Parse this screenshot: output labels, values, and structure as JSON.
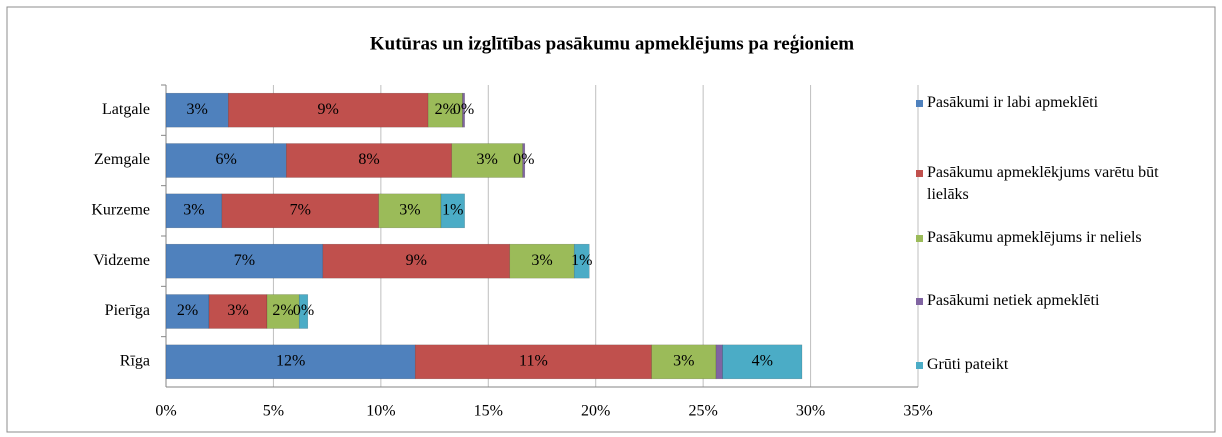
{
  "chart_data": {
    "type": "stacked_bar_horizontal",
    "title": "Kutūras un izglītības pasākumu apmeklējums pa reģioniem",
    "categories": [
      "Latgale",
      "Zemgale",
      "Kurzeme",
      "Vidzeme",
      "Pierīga",
      "Rīga"
    ],
    "series": [
      {
        "name": "Pasākumi ir labi apmeklēti",
        "color": "#4f81bd",
        "values": [
          2.9,
          5.6,
          2.6,
          7.3,
          2.0,
          11.6
        ],
        "value_labels": [
          "3%",
          "6%",
          "3%",
          "7%",
          "2%",
          "12%"
        ]
      },
      {
        "name": "Pasākumu apmeklēkjums varētu būt lielāks",
        "color": "#c0504d",
        "values": [
          9.3,
          7.7,
          7.3,
          8.7,
          2.7,
          11.0
        ],
        "value_labels": [
          "9%",
          "8%",
          "7%",
          "9%",
          "3%",
          "11%"
        ]
      },
      {
        "name": "Pasākumu apmeklējums ir neliels",
        "color": "#9bbb59",
        "values": [
          1.6,
          3.3,
          2.9,
          3.0,
          1.5,
          3.0
        ],
        "value_labels": [
          "2%",
          "3%",
          "3%",
          "3%",
          "2%",
          "3%"
        ]
      },
      {
        "name": "Pasākumi netiek apmeklēti",
        "color": "#8064a2",
        "values": [
          0.1,
          0.1,
          null,
          null,
          null,
          0.3
        ],
        "value_labels": [
          "0%",
          "0%",
          null,
          null,
          null,
          null
        ]
      },
      {
        "name": "Grūti pateikt",
        "color": "#4bacc6",
        "values": [
          null,
          null,
          1.1,
          0.7,
          0.4,
          3.7
        ],
        "value_labels": [
          null,
          null,
          "1%",
          "1%",
          "0%",
          "4%"
        ]
      }
    ],
    "xlim": [
      0,
      35
    ],
    "xticks": [
      {
        "value": 0,
        "label": "0%"
      },
      {
        "value": 5,
        "label": "5%"
      },
      {
        "value": 10,
        "label": "10%"
      },
      {
        "value": 15,
        "label": "15%"
      },
      {
        "value": 20,
        "label": "20%"
      },
      {
        "value": 25,
        "label": "25%"
      },
      {
        "value": 30,
        "label": "30%"
      },
      {
        "value": 35,
        "label": "35%"
      }
    ],
    "grid": true,
    "legend": "right"
  }
}
